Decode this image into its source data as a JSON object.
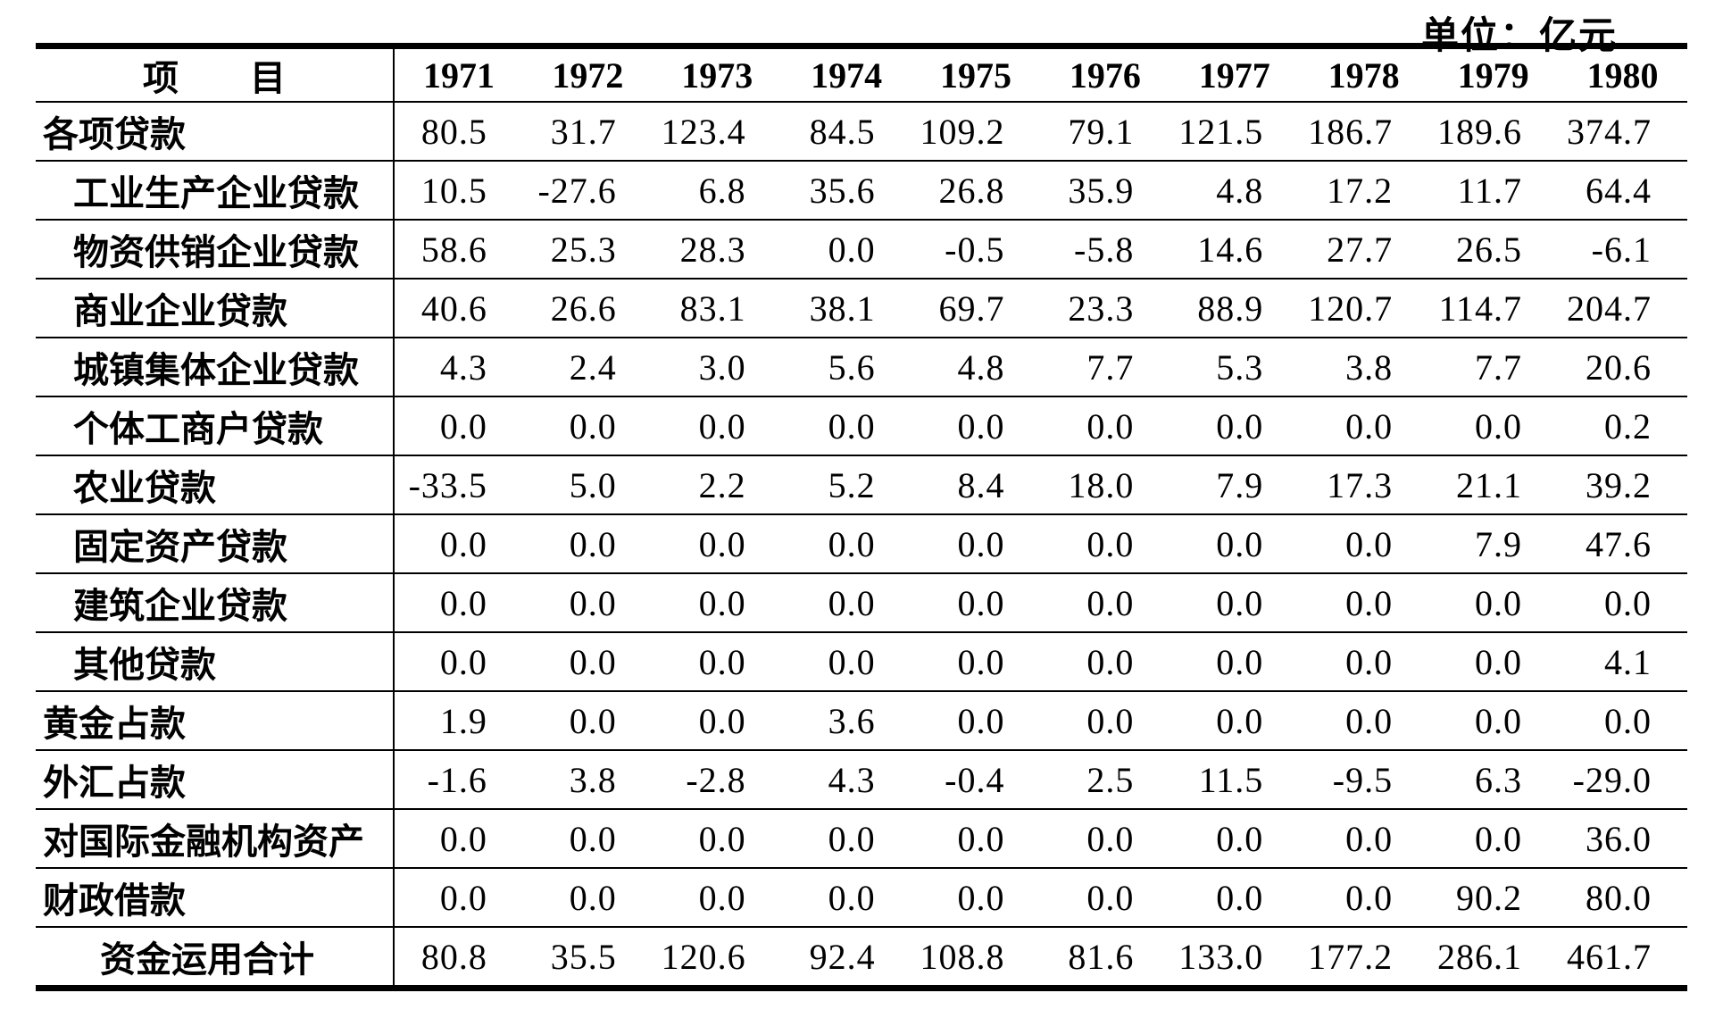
{
  "unit_label": "单位：亿元",
  "table": {
    "header": {
      "item_label": "项　　目",
      "years": [
        "1971",
        "1972",
        "1973",
        "1974",
        "1975",
        "1976",
        "1977",
        "1978",
        "1979",
        "1980"
      ]
    },
    "rows": [
      {
        "label": "各项贷款",
        "indent": 0,
        "values": [
          "80.5",
          "31.7",
          "123.4",
          "84.5",
          "109.2",
          "79.1",
          "121.5",
          "186.7",
          "189.6",
          "374.7"
        ]
      },
      {
        "label": "工业生产企业贷款",
        "indent": 1,
        "values": [
          "10.5",
          "-27.6",
          "6.8",
          "35.6",
          "26.8",
          "35.9",
          "4.8",
          "17.2",
          "11.7",
          "64.4"
        ]
      },
      {
        "label": "物资供销企业贷款",
        "indent": 1,
        "values": [
          "58.6",
          "25.3",
          "28.3",
          "0.0",
          "-0.5",
          "-5.8",
          "14.6",
          "27.7",
          "26.5",
          "-6.1"
        ]
      },
      {
        "label": "商业企业贷款",
        "indent": 1,
        "values": [
          "40.6",
          "26.6",
          "83.1",
          "38.1",
          "69.7",
          "23.3",
          "88.9",
          "120.7",
          "114.7",
          "204.7"
        ]
      },
      {
        "label": "城镇集体企业贷款",
        "indent": 1,
        "values": [
          "4.3",
          "2.4",
          "3.0",
          "5.6",
          "4.8",
          "7.7",
          "5.3",
          "3.8",
          "7.7",
          "20.6"
        ]
      },
      {
        "label": "个体工商户贷款",
        "indent": 1,
        "values": [
          "0.0",
          "0.0",
          "0.0",
          "0.0",
          "0.0",
          "0.0",
          "0.0",
          "0.0",
          "0.0",
          "0.2"
        ]
      },
      {
        "label": "农业贷款",
        "indent": 1,
        "values": [
          "-33.5",
          "5.0",
          "2.2",
          "5.2",
          "8.4",
          "18.0",
          "7.9",
          "17.3",
          "21.1",
          "39.2"
        ]
      },
      {
        "label": "固定资产贷款",
        "indent": 1,
        "values": [
          "0.0",
          "0.0",
          "0.0",
          "0.0",
          "0.0",
          "0.0",
          "0.0",
          "0.0",
          "7.9",
          "47.6"
        ]
      },
      {
        "label": "建筑企业贷款",
        "indent": 1,
        "values": [
          "0.0",
          "0.0",
          "0.0",
          "0.0",
          "0.0",
          "0.0",
          "0.0",
          "0.0",
          "0.0",
          "0.0"
        ]
      },
      {
        "label": "其他贷款",
        "indent": 1,
        "values": [
          "0.0",
          "0.0",
          "0.0",
          "0.0",
          "0.0",
          "0.0",
          "0.0",
          "0.0",
          "0.0",
          "4.1"
        ]
      },
      {
        "label": "黄金占款",
        "indent": 0,
        "values": [
          "1.9",
          "0.0",
          "0.0",
          "3.6",
          "0.0",
          "0.0",
          "0.0",
          "0.0",
          "0.0",
          "0.0"
        ]
      },
      {
        "label": "外汇占款",
        "indent": 0,
        "values": [
          "-1.6",
          "3.8",
          "-2.8",
          "4.3",
          "-0.4",
          "2.5",
          "11.5",
          "-9.5",
          "6.3",
          "-29.0"
        ]
      },
      {
        "label": "对国际金融机构资产",
        "indent": 0,
        "values": [
          "0.0",
          "0.0",
          "0.0",
          "0.0",
          "0.0",
          "0.0",
          "0.0",
          "0.0",
          "0.0",
          "36.0"
        ]
      },
      {
        "label": "财政借款",
        "indent": 0,
        "values": [
          "0.0",
          "0.0",
          "0.0",
          "0.0",
          "0.0",
          "0.0",
          "0.0",
          "0.0",
          "90.2",
          "80.0"
        ]
      },
      {
        "label": "资金运用合计",
        "indent": 2,
        "values": [
          "80.8",
          "35.5",
          "120.6",
          "92.4",
          "108.8",
          "81.6",
          "133.0",
          "177.2",
          "286.1",
          "461.7"
        ]
      }
    ]
  }
}
